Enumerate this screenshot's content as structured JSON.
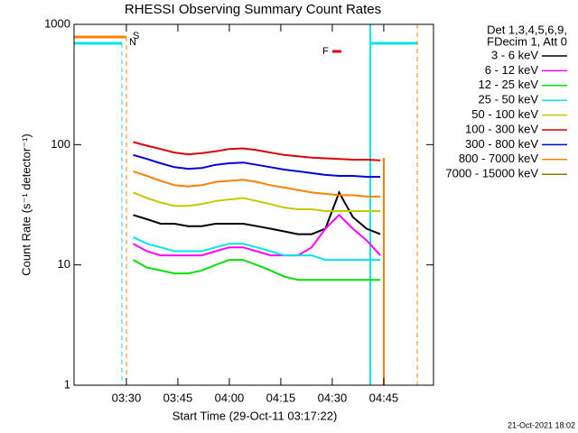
{
  "chart_data": {
    "type": "line",
    "title": "RHESSI Observing Summary Count Rates",
    "x_label": "Start Time (29-Oct-11 03:17:22)",
    "y_label": "Count Rate (s⁻¹ detector⁻¹)",
    "log_y": true,
    "legend_header": [
      "Det 1,3,4,5,6,9,",
      "FDecim 1, Att 0"
    ],
    "annotations": [
      {
        "text": "S",
        "color": "#ff8000"
      },
      {
        "text": "N",
        "color": "#00e5e5"
      },
      {
        "text": "F",
        "color": "#e00000"
      }
    ],
    "footer": "21-Oct-2021 18:02",
    "xlim": [
      "03:14:45",
      "04:59:30"
    ],
    "xticks": [
      "03:30",
      "03:45",
      "04:00",
      "04:15",
      "04:30",
      "04:45"
    ],
    "ylim": [
      1,
      1000
    ],
    "yticks": [
      1,
      10,
      100,
      1000
    ],
    "x": [
      "03:32",
      "03:36",
      "03:40",
      "03:44",
      "03:48",
      "03:52",
      "03:56",
      "04:00",
      "04:04",
      "04:08",
      "04:12",
      "04:16",
      "04:20",
      "04:24",
      "04:28",
      "04:32",
      "04:36",
      "04:40",
      "04:44"
    ],
    "series": [
      {
        "name": "3 - 6 keV",
        "color": "#000000",
        "values": [
          26,
          24,
          22,
          22,
          21,
          21,
          22,
          22,
          22,
          21,
          20,
          19,
          18,
          18,
          20,
          40,
          25,
          20,
          18
        ]
      },
      {
        "name": "6 - 12 keV",
        "color": "#ff00ff",
        "values": [
          15,
          13,
          12,
          12,
          12,
          12,
          13,
          14,
          14,
          13,
          12,
          12,
          12,
          14,
          20,
          26,
          20,
          16,
          12
        ]
      },
      {
        "name": "12 - 25 keV",
        "color": "#00e000",
        "values": [
          11,
          9.5,
          9,
          8.5,
          8.5,
          9,
          10,
          11,
          11,
          10,
          9,
          8,
          7.5,
          7.5,
          7.5,
          7.5,
          7.5,
          7.5,
          7.5
        ]
      },
      {
        "name": "25 - 50 keV",
        "color": "#00e5e5",
        "values": [
          17,
          15,
          14,
          13,
          13,
          13,
          14,
          15,
          15,
          14,
          13,
          12,
          12,
          12,
          11,
          11,
          11,
          11,
          11
        ]
      },
      {
        "name": "50 - 100 keV",
        "color": "#c8c800",
        "values": [
          40,
          36,
          33,
          31,
          31,
          32,
          34,
          35,
          36,
          34,
          32,
          30,
          29,
          29,
          28,
          28,
          28,
          28,
          28
        ]
      },
      {
        "name": "100 - 300 keV",
        "color": "#e00000",
        "values": [
          105,
          98,
          92,
          86,
          83,
          85,
          88,
          92,
          93,
          90,
          86,
          82,
          80,
          78,
          77,
          76,
          75,
          75,
          74
        ]
      },
      {
        "name": "300 - 800 keV",
        "color": "#0000e0",
        "values": [
          82,
          76,
          70,
          65,
          63,
          64,
          68,
          70,
          71,
          68,
          65,
          62,
          60,
          58,
          56,
          55,
          55,
          54,
          54
        ]
      },
      {
        "name": "800 - 7000 keV",
        "color": "#ff8000",
        "values": [
          60,
          55,
          50,
          46,
          45,
          46,
          49,
          50,
          51,
          49,
          46,
          44,
          42,
          40,
          39,
          38,
          38,
          37,
          37
        ]
      },
      {
        "name": "7000 - 15000 keV",
        "color": "#808000",
        "values": [
          null,
          null,
          null,
          null,
          null,
          null,
          null,
          null,
          null,
          null,
          null,
          null,
          null,
          null,
          null,
          null,
          null,
          null,
          null
        ]
      }
    ]
  }
}
